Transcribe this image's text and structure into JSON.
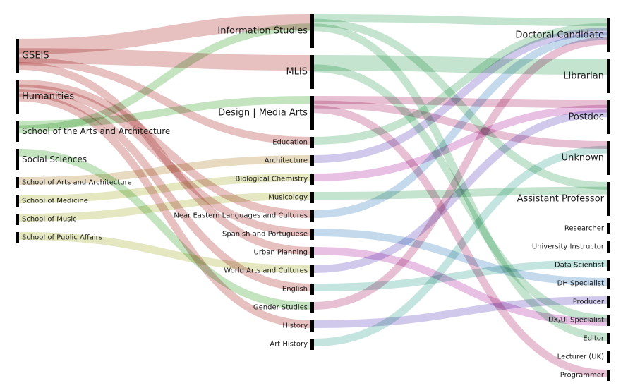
{
  "diagram": {
    "type": "sankey",
    "columns": [
      {
        "id": "school",
        "nodes": [
          {
            "id": "GSEIS",
            "label": "GSEIS",
            "size": "large"
          },
          {
            "id": "Humanities",
            "label": "Humanities",
            "size": "large"
          },
          {
            "id": "SAA",
            "label": "School of the Arts and Architecture",
            "size": "medium"
          },
          {
            "id": "SocSci",
            "label": "Social Sciences",
            "size": "medium"
          },
          {
            "id": "SchArts",
            "label": "School of Arts and Architecture",
            "size": "small"
          },
          {
            "id": "Medicine",
            "label": "School of Medicine",
            "size": "small"
          },
          {
            "id": "Music",
            "label": "School of Music",
            "size": "small"
          },
          {
            "id": "PublicAffairs",
            "label": "School of Public Affairs",
            "size": "small"
          }
        ]
      },
      {
        "id": "program",
        "nodes": [
          {
            "id": "InfoStudies",
            "label": "Information Studies",
            "size": "large"
          },
          {
            "id": "MLIS",
            "label": "MLIS",
            "size": "large"
          },
          {
            "id": "DMA",
            "label": "Design | Media Arts",
            "size": "large"
          },
          {
            "id": "Education",
            "label": "Education",
            "size": "small"
          },
          {
            "id": "Architecture",
            "label": "Architecture",
            "size": "small"
          },
          {
            "id": "BioChem",
            "label": "Biological Chemistry",
            "size": "small"
          },
          {
            "id": "Musicology",
            "label": "Musicology",
            "size": "small"
          },
          {
            "id": "NELC",
            "label": "Near Eastern Languages and Cultures",
            "size": "small"
          },
          {
            "id": "SpanPort",
            "label": "Spanish and Portuguese",
            "size": "small"
          },
          {
            "id": "UrbanPlan",
            "label": "Urban Planning",
            "size": "small"
          },
          {
            "id": "WAC",
            "label": "World Arts and Cultures",
            "size": "small"
          },
          {
            "id": "English",
            "label": "English",
            "size": "small"
          },
          {
            "id": "GenderStudies",
            "label": "Gender Studies",
            "size": "small"
          },
          {
            "id": "History",
            "label": "History",
            "size": "small"
          },
          {
            "id": "ArtHistory",
            "label": "Art History",
            "size": "small"
          }
        ]
      },
      {
        "id": "outcome",
        "nodes": [
          {
            "id": "DocCand",
            "label": "Doctoral Candidate",
            "size": "large"
          },
          {
            "id": "Librarian",
            "label": "Librarian",
            "size": "large"
          },
          {
            "id": "Postdoc",
            "label": "Postdoc",
            "size": "large"
          },
          {
            "id": "Unknown",
            "label": "Unknown",
            "size": "large"
          },
          {
            "id": "AsstProf",
            "label": "Assistant Professor",
            "size": "large"
          },
          {
            "id": "Researcher",
            "label": "Researcher",
            "size": "small"
          },
          {
            "id": "UnivInstr",
            "label": "University Instructor",
            "size": "small"
          },
          {
            "id": "DataSci",
            "label": "Data Scientist",
            "size": "small"
          },
          {
            "id": "DHSpec",
            "label": "DH Specialist",
            "size": "small"
          },
          {
            "id": "Producer",
            "label": "Producer",
            "size": "small"
          },
          {
            "id": "UXUI",
            "label": "UX/UI Specialist",
            "size": "small"
          },
          {
            "id": "Editor",
            "label": "Editor",
            "size": "small"
          },
          {
            "id": "LecturerUK",
            "label": "Lecturer (UK)",
            "size": "small"
          },
          {
            "id": "Programmer",
            "label": "Programmer",
            "size": "small"
          }
        ]
      }
    ],
    "links": [
      {
        "source": "GSEIS",
        "target": "InfoStudies",
        "value": 2,
        "color": "#d99a9a"
      },
      {
        "source": "GSEIS",
        "target": "MLIS",
        "value": 2,
        "color": "#d99a9a"
      },
      {
        "source": "GSEIS",
        "target": "Education",
        "value": 1,
        "color": "#d99a9a"
      },
      {
        "source": "GSEIS",
        "target": "UrbanPlan",
        "value": 1,
        "color": "#d99a9a"
      },
      {
        "source": "Humanities",
        "target": "NELC",
        "value": 1,
        "color": "#d99a9a"
      },
      {
        "source": "Humanities",
        "target": "SpanPort",
        "value": 1,
        "color": "#d99a9a"
      },
      {
        "source": "Humanities",
        "target": "English",
        "value": 1,
        "color": "#d99a9a"
      },
      {
        "source": "Humanities",
        "target": "History",
        "value": 1,
        "color": "#d99a9a"
      },
      {
        "source": "SAA",
        "target": "DMA",
        "value": 1,
        "color": "#9fd49a"
      },
      {
        "source": "SAA",
        "target": "InfoStudies",
        "value": 1,
        "color": "#9fd49a"
      },
      {
        "source": "SocSci",
        "target": "GenderStudies",
        "value": 1,
        "color": "#9fd49a"
      },
      {
        "source": "SchArts",
        "target": "Architecture",
        "value": 1,
        "color": "#d9c49a"
      },
      {
        "source": "Medicine",
        "target": "BioChem",
        "value": 1,
        "color": "#d4d99a"
      },
      {
        "source": "Music",
        "target": "Musicology",
        "value": 1,
        "color": "#d4d99a"
      },
      {
        "source": "PublicAffairs",
        "target": "WAC",
        "value": 1,
        "color": "#d4d99a"
      },
      {
        "source": "InfoStudies",
        "target": "DocCand",
        "value": 1,
        "color": "#9fd4b2"
      },
      {
        "source": "InfoStudies",
        "target": "AsstProf",
        "value": 1,
        "color": "#9fd4b2"
      },
      {
        "source": "InfoStudies",
        "target": "Editor",
        "value": 1,
        "color": "#9fd4b2"
      },
      {
        "source": "MLIS",
        "target": "Librarian",
        "value": 2,
        "color": "#9fd4b2"
      },
      {
        "source": "MLIS",
        "target": "UXUI",
        "value": 1,
        "color": "#9fd4b2"
      },
      {
        "source": "DMA",
        "target": "Postdoc",
        "value": 1,
        "color": "#d99ab8"
      },
      {
        "source": "DMA",
        "target": "Unknown",
        "value": 1,
        "color": "#d99ab8"
      },
      {
        "source": "DMA",
        "target": "Programmer",
        "value": 1,
        "color": "#d99ab8"
      },
      {
        "source": "Education",
        "target": "DocCand",
        "value": 1,
        "color": "#9fd4b2"
      },
      {
        "source": "Architecture",
        "target": "DocCand",
        "value": 1,
        "color": "#b3a8e0"
      },
      {
        "source": "BioChem",
        "target": "Postdoc",
        "value": 1,
        "color": "#d99ad4"
      },
      {
        "source": "Musicology",
        "target": "AsstProf",
        "value": 1,
        "color": "#9fd4b2"
      },
      {
        "source": "NELC",
        "target": "DocCand",
        "value": 1,
        "color": "#9fc4e0"
      },
      {
        "source": "SpanPort",
        "target": "DHSpec",
        "value": 1,
        "color": "#9fc4e0"
      },
      {
        "source": "UrbanPlan",
        "target": "UXUI",
        "value": 1,
        "color": "#d99ad4"
      },
      {
        "source": "WAC",
        "target": "Postdoc",
        "value": 1,
        "color": "#b3a8e0"
      },
      {
        "source": "English",
        "target": "DataSci",
        "value": 1,
        "color": "#9fd4cc"
      },
      {
        "source": "GenderStudies",
        "target": "DocCand",
        "value": 1,
        "color": "#d99ab8"
      },
      {
        "source": "History",
        "target": "Producer",
        "value": 1,
        "color": "#b3a8e0"
      },
      {
        "source": "ArtHistory",
        "target": "Unknown",
        "value": 1,
        "color": "#9fd4cc"
      }
    ],
    "node_color": "#000000"
  }
}
